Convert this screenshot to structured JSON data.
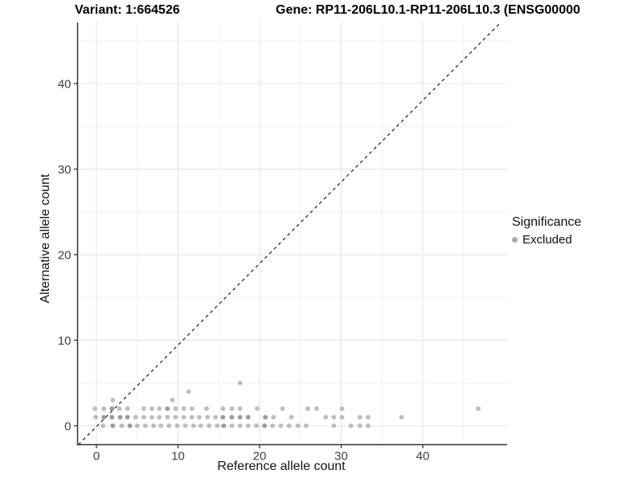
{
  "header": {
    "variant_title": "Variant: 1:664526",
    "gene_title": "Gene: RP11-206L10.1-RP11-206L10.3 (ENSG00000"
  },
  "legend": {
    "title": "Significance",
    "position": "right",
    "items": [
      {
        "label": "Excluded",
        "color": "#aaaaaa",
        "marker": "dot"
      }
    ]
  },
  "colors": {
    "point_gray": "#8a8a8a",
    "grid_major": "#e4e4e4",
    "grid_minor": "#f2f2f2",
    "axis_line": "#333333",
    "reference_line": "#1a1a1a",
    "background": "#ffffff"
  },
  "chart_data": {
    "type": "scatter",
    "xlabel": "Reference allele count",
    "ylabel": "Alternative allele count",
    "x_ticks": [
      0,
      10,
      20,
      30,
      40
    ],
    "y_ticks": [
      0,
      10,
      20,
      30,
      40
    ],
    "x_minor_ticks": [
      5,
      15,
      25,
      35,
      45
    ],
    "y_minor_ticks": [
      5,
      15,
      25,
      35,
      45
    ],
    "xlim": [
      -2.3,
      50.4
    ],
    "ylim": [
      -2.2,
      47.3
    ],
    "grid": true,
    "legend_position": "right",
    "reference_line": {
      "equation": "y = x",
      "style": "dashed"
    },
    "series": [
      {
        "name": "Excluded",
        "color": "#8a8a8a",
        "points": [
          [
            0.8,
            0
          ],
          [
            2.0,
            0,
            1
          ],
          [
            3.1,
            0
          ],
          [
            4.1,
            0,
            1
          ],
          [
            5.0,
            0
          ],
          [
            6.0,
            0
          ],
          [
            7.0,
            0
          ],
          [
            7.9,
            0
          ],
          [
            8.9,
            0
          ],
          [
            9.9,
            0
          ],
          [
            10.9,
            0
          ],
          [
            11.9,
            0
          ],
          [
            12.8,
            0
          ],
          [
            13.8,
            0
          ],
          [
            14.8,
            0
          ],
          [
            15.6,
            0,
            1
          ],
          [
            16.6,
            0
          ],
          [
            17.6,
            0
          ],
          [
            18.6,
            0
          ],
          [
            19.6,
            0
          ],
          [
            20.6,
            0,
            1
          ],
          [
            21.6,
            0
          ],
          [
            22.6,
            0
          ],
          [
            23.6,
            0
          ],
          [
            24.7,
            0
          ],
          [
            25.7,
            0
          ],
          [
            29.1,
            0
          ],
          [
            31.2,
            0
          ],
          [
            32.3,
            0
          ],
          [
            33.3,
            0
          ],
          [
            -0.1,
            1
          ],
          [
            0.9,
            1,
            1
          ],
          [
            1.9,
            1,
            1
          ],
          [
            2.9,
            1,
            1
          ],
          [
            3.8,
            1,
            1
          ],
          [
            4.8,
            1
          ],
          [
            5.8,
            1
          ],
          [
            6.8,
            1
          ],
          [
            7.7,
            1
          ],
          [
            8.7,
            1
          ],
          [
            9.7,
            1
          ],
          [
            10.7,
            1
          ],
          [
            11.7,
            1
          ],
          [
            12.6,
            1
          ],
          [
            13.6,
            1
          ],
          [
            14.6,
            1
          ],
          [
            15.5,
            1,
            1
          ],
          [
            16.6,
            1,
            1
          ],
          [
            17.6,
            1,
            1
          ],
          [
            18.6,
            1,
            1
          ],
          [
            20.7,
            1,
            1
          ],
          [
            21.7,
            1
          ],
          [
            23.9,
            1
          ],
          [
            28.1,
            1
          ],
          [
            29.1,
            1
          ],
          [
            30.1,
            1
          ],
          [
            32.3,
            1
          ],
          [
            33.3,
            1
          ],
          [
            37.4,
            1
          ],
          [
            -0.2,
            2
          ],
          [
            0.9,
            2
          ],
          [
            1.9,
            2,
            1
          ],
          [
            2.8,
            2
          ],
          [
            3.8,
            2
          ],
          [
            5.8,
            2
          ],
          [
            6.8,
            2
          ],
          [
            7.7,
            2
          ],
          [
            8.7,
            2,
            1
          ],
          [
            9.7,
            2
          ],
          [
            10.7,
            2
          ],
          [
            11.7,
            2
          ],
          [
            13.5,
            2
          ],
          [
            15.5,
            2
          ],
          [
            16.6,
            2
          ],
          [
            17.6,
            2
          ],
          [
            19.7,
            2
          ],
          [
            22.8,
            2
          ],
          [
            25.9,
            2
          ],
          [
            27.0,
            2
          ],
          [
            30.1,
            2
          ],
          [
            46.8,
            2
          ],
          [
            2.0,
            3
          ],
          [
            9.3,
            3
          ],
          [
            11.3,
            4
          ],
          [
            17.6,
            5
          ]
        ]
      }
    ]
  }
}
